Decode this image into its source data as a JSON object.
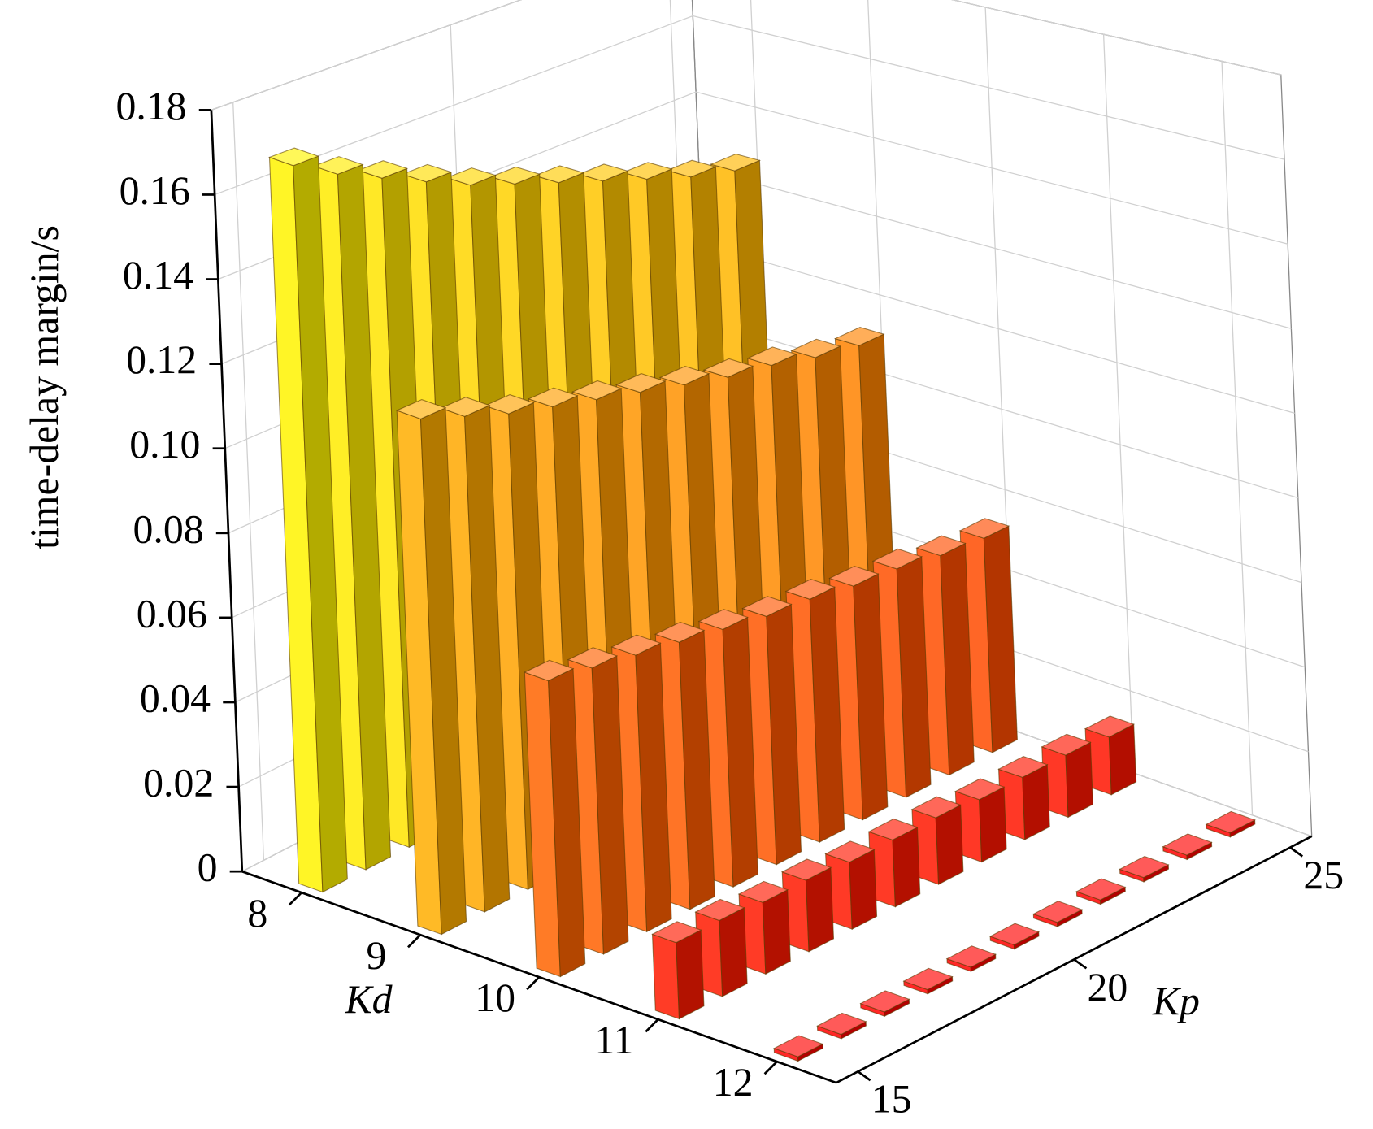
{
  "chart_data": {
    "type": "bar3d",
    "ylabel": "time-delay margin/s",
    "xlabel": "Kp",
    "depth_label": "Kd",
    "depth_categories": [
      "8",
      "9",
      "10",
      "11",
      "12"
    ],
    "x": [
      15,
      16,
      17,
      18,
      19,
      20,
      21,
      22,
      23,
      24,
      25
    ],
    "xlim": [
      14.5,
      25.5
    ],
    "xticks": [
      15,
      20,
      25
    ],
    "zlim": [
      0,
      0.18
    ],
    "zticks": [
      0,
      0.02,
      0.04,
      0.06,
      0.08,
      {
        "value": 0.1,
        "label": "0.10"
      },
      0.12,
      0.14,
      0.16,
      0.18
    ],
    "values": [
      [
        0.172,
        0.166,
        0.161,
        0.156,
        0.151,
        0.147,
        0.143,
        0.139,
        0.135,
        0.131,
        0.128
      ],
      [
        0.122,
        0.118,
        0.114,
        0.111,
        0.108,
        0.105,
        0.102,
        0.099,
        0.097,
        0.094,
        0.092
      ],
      [
        0.07,
        0.068,
        0.066,
        0.064,
        0.062,
        0.06,
        0.059,
        0.057,
        0.056,
        0.054,
        0.053
      ],
      [
        0.018,
        0.018,
        0.017,
        0.017,
        0.016,
        0.016,
        0.016,
        0.015,
        0.015,
        0.015,
        0.014
      ],
      [
        0.001,
        0.001,
        0.001,
        0.001,
        0.001,
        0.001,
        0.001,
        0.001,
        0.001,
        0.001,
        0.001
      ]
    ],
    "colormap": [
      "#ff0000",
      "#ff4000",
      "#ff8000",
      "#ffc000",
      "#ffff00"
    ],
    "grid": true
  }
}
